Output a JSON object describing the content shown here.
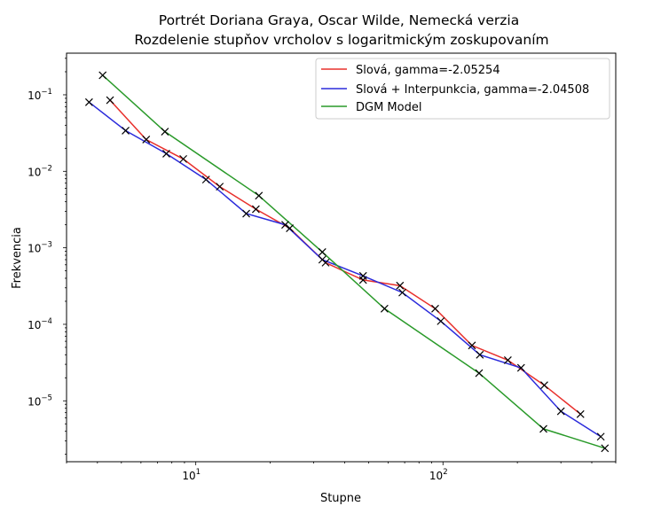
{
  "chart_data": {
    "type": "line",
    "title": "Portrét Doriana Graya, Oscar Wilde, Nemecká verzia",
    "subtitle": "Rozdelenie stupňov vrcholov s logaritmickým zoskupovaním",
    "xlabel": "Stupne",
    "ylabel": "Frekvencia",
    "xscale": "log",
    "yscale": "log",
    "xlim": [
      3,
      500
    ],
    "ylim": [
      1.6e-06,
      0.35
    ],
    "x_ticks": [
      {
        "value": 10,
        "label": "10",
        "exp": "1"
      },
      {
        "value": 100,
        "label": "10",
        "exp": "2"
      }
    ],
    "y_ticks": [
      {
        "value": 1e-05,
        "label": "10",
        "exp": "−5"
      },
      {
        "value": 0.0001,
        "label": "10",
        "exp": "−4"
      },
      {
        "value": 0.001,
        "label": "10",
        "exp": "−3"
      },
      {
        "value": 0.01,
        "label": "10",
        "exp": "−2"
      },
      {
        "value": 0.1,
        "label": "10",
        "exp": "−1"
      }
    ],
    "legend_position": "top-right",
    "grid": false,
    "series": [
      {
        "name": "Slová, gamma=-2.05254",
        "color": "#e8302c",
        "markers": true,
        "points": [
          [
            4.5,
            0.085
          ],
          [
            6.3,
            0.026
          ],
          [
            8.9,
            0.0145
          ],
          [
            12.5,
            0.0063
          ],
          [
            17.5,
            0.0032
          ],
          [
            24,
            0.0018
          ],
          [
            33.5,
            0.00064
          ],
          [
            47.5,
            0.00038
          ],
          [
            67,
            0.00032
          ],
          [
            93,
            0.00016
          ],
          [
            131,
            5.3e-05
          ],
          [
            183,
            3.4e-05
          ],
          [
            257,
            1.6e-05
          ],
          [
            360,
            6.7e-06
          ]
        ]
      },
      {
        "name": "Slová + Interpunkcia, gamma=-2.04508",
        "color": "#2b2bdb",
        "markers": true,
        "points": [
          [
            3.7,
            0.08
          ],
          [
            5.2,
            0.034
          ],
          [
            7.6,
            0.017
          ],
          [
            11,
            0.0078
          ],
          [
            16,
            0.0028
          ],
          [
            23,
            0.002
          ],
          [
            32.5,
            0.0007
          ],
          [
            47.5,
            0.00043
          ],
          [
            68.5,
            0.00026
          ],
          [
            98,
            0.00011
          ],
          [
            141,
            4e-05
          ],
          [
            207,
            2.7e-05
          ],
          [
            300,
            7.3e-06
          ],
          [
            435,
            3.4e-06
          ]
        ]
      },
      {
        "name": "DGM Model",
        "color": "#2a9a2a",
        "markers": true,
        "points": [
          [
            4.2,
            0.18
          ],
          [
            7.5,
            0.033
          ],
          [
            18,
            0.0048
          ],
          [
            32.5,
            0.00088
          ],
          [
            58,
            0.00016
          ],
          [
            140,
            2.3e-05
          ],
          [
            255,
            4.3e-06
          ],
          [
            452,
            2.4e-06
          ]
        ]
      }
    ]
  }
}
